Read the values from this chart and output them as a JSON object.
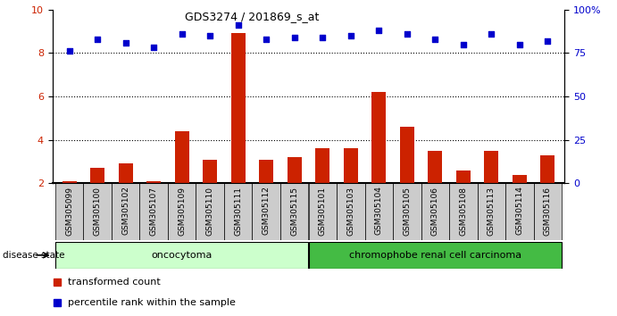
{
  "title": "GDS3274 / 201869_s_at",
  "samples": [
    "GSM305099",
    "GSM305100",
    "GSM305102",
    "GSM305107",
    "GSM305109",
    "GSM305110",
    "GSM305111",
    "GSM305112",
    "GSM305115",
    "GSM305101",
    "GSM305103",
    "GSM305104",
    "GSM305105",
    "GSM305106",
    "GSM305108",
    "GSM305113",
    "GSM305114",
    "GSM305116"
  ],
  "transformed_count": [
    2.1,
    2.7,
    2.9,
    2.1,
    4.4,
    3.1,
    8.9,
    3.1,
    3.2,
    3.6,
    3.6,
    6.2,
    4.6,
    3.5,
    2.6,
    3.5,
    2.4,
    3.3
  ],
  "percentile_rank": [
    76,
    83,
    81,
    78,
    86,
    85,
    91,
    83,
    84,
    84,
    85,
    88,
    86,
    83,
    80,
    86,
    80,
    82
  ],
  "oncocytoma_count": 9,
  "chromophobe_count": 9,
  "bar_color": "#cc2200",
  "dot_color": "#0000cc",
  "onco_label": "oncocytoma",
  "chrom_label": "chromophobe renal cell carcinoma",
  "disease_label": "disease state",
  "legend_bar": "transformed count",
  "legend_dot": "percentile rank within the sample",
  "ylim_left": [
    2,
    10
  ],
  "ylim_right": [
    0,
    100
  ],
  "yticks_left": [
    2,
    4,
    6,
    8,
    10
  ],
  "yticks_right": [
    0,
    25,
    50,
    75,
    100
  ],
  "onco_bg": "#ccffcc",
  "chrom_bg": "#44bb44",
  "tick_bg": "#cccccc",
  "grid_dotted_at": [
    4,
    6,
    8
  ]
}
